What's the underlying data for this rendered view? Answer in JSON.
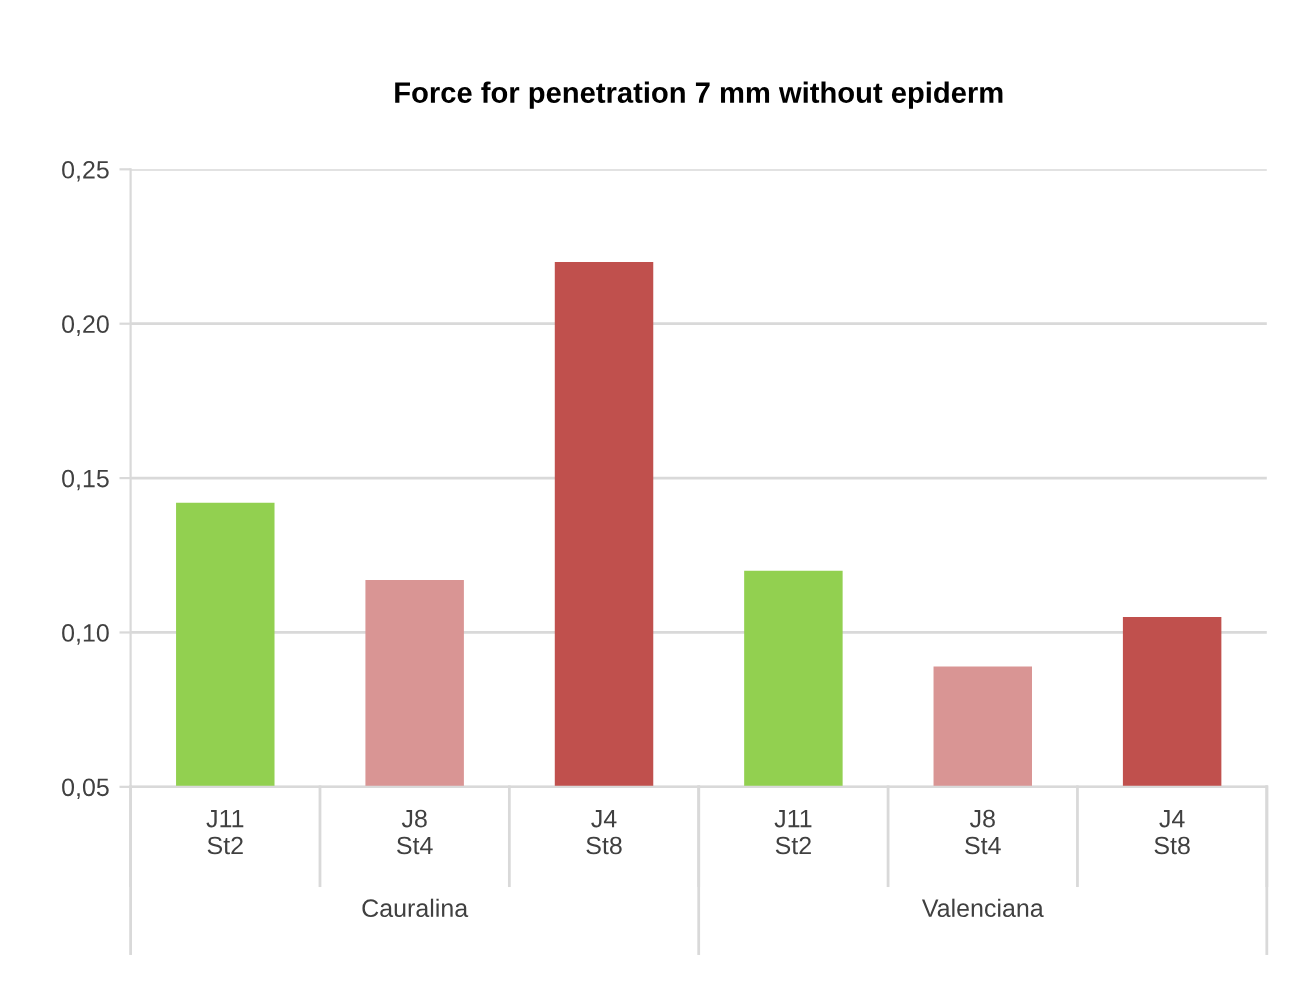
{
  "chart_data": {
    "type": "bar",
    "title": "Force for penetration 7 mm without epiderm",
    "categories": [
      "J11\nSt2",
      "J8\nSt4",
      "J4\nSt8",
      "J11\nSt2",
      "J8\nSt4",
      "J4\nSt8"
    ],
    "values": [
      0.142,
      0.117,
      0.22,
      0.12,
      0.089,
      0.105
    ],
    "colors": [
      "#92d050",
      "#d99594",
      "#c0504d",
      "#92d050",
      "#d99594",
      "#c0504d"
    ],
    "annotations": [
      "Cauralina",
      "Valenciana"
    ],
    "ylim": [
      0.05,
      0.25
    ],
    "yticks": [
      {
        "value": 0.05,
        "label": "0,05"
      },
      {
        "value": 0.1,
        "label": "0,10"
      },
      {
        "value": 0.15,
        "label": "0,15"
      },
      {
        "value": 0.2,
        "label": "0,20"
      },
      {
        "value": 0.25,
        "label": "0,25"
      }
    ],
    "grid": "y",
    "legend": false
  }
}
